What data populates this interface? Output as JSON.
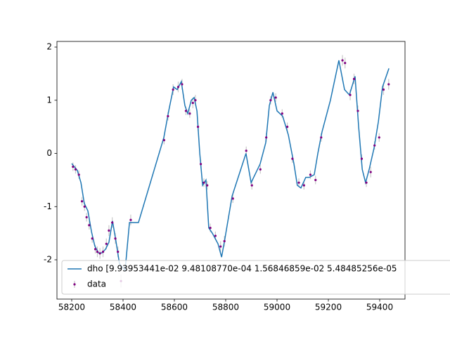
{
  "chart_data": {
    "type": "line",
    "xlim": [
      58142.5,
      59498.6
    ],
    "ylim": [
      -2.739,
      2.106
    ],
    "xticks": [
      58200,
      58400,
      58600,
      58800,
      59000,
      59200,
      59400
    ],
    "yticks": [
      -2,
      -1,
      0,
      1,
      2
    ],
    "legend": "lower left",
    "series": [
      {
        "name": "dho [9.93953441e-02 9.48108770e-04 1.56846859e-02 5.48485256e-05",
        "color": "#1f77b4",
        "style": "line",
        "x": [
          58200,
          58222,
          58236,
          58249,
          58263,
          58277,
          58290,
          58304,
          58318,
          58332,
          58345,
          58359,
          58373,
          58386,
          58408,
          58425,
          58460,
          58559,
          58578,
          58597,
          58611,
          58627,
          58641,
          58652,
          58666,
          58677,
          58688,
          58699,
          58710,
          58723,
          58734,
          58748,
          58770,
          58784,
          58797,
          58825,
          58879,
          58899,
          58934,
          58956,
          58970,
          58984,
          59000,
          59022,
          59044,
          59066,
          59079,
          59093,
          59112,
          59126,
          59145,
          59159,
          59175,
          59208,
          59241,
          59263,
          59282,
          59304,
          59318,
          59332,
          59345,
          59359,
          59378,
          59395,
          59411,
          59436
        ],
        "values": [
          -0.19,
          -0.32,
          -0.55,
          -0.94,
          -1.08,
          -1.47,
          -1.74,
          -1.87,
          -1.87,
          -1.8,
          -1.67,
          -1.27,
          -1.67,
          -2.07,
          -2.2,
          -1.3,
          -1.3,
          0.3,
          0.8,
          1.25,
          1.2,
          1.35,
          0.9,
          0.75,
          1.0,
          1.05,
          0.8,
          0.0,
          -0.6,
          -0.5,
          -1.4,
          -1.5,
          -1.7,
          -1.95,
          -1.6,
          -0.8,
          0.0,
          -0.55,
          -0.2,
          0.2,
          0.9,
          1.15,
          0.8,
          0.7,
          0.35,
          -0.2,
          -0.6,
          -0.65,
          -0.45,
          -0.45,
          -0.4,
          0.0,
          0.4,
          1.0,
          1.75,
          1.2,
          1.1,
          1.45,
          0.5,
          -0.3,
          -0.55,
          -0.3,
          0.1,
          0.6,
          1.25,
          1.6
        ]
      },
      {
        "name": "data",
        "color": "#800080",
        "error_color": "#c8c8c8",
        "style": "points",
        "x": [
          58205,
          58215,
          58228,
          58240,
          58250,
          58258,
          58268,
          58280,
          58292,
          58300,
          58310,
          58322,
          58335,
          58345,
          58358,
          58370,
          58380,
          58392,
          58430,
          58560,
          58575,
          58595,
          58615,
          58630,
          58645,
          58660,
          58672,
          58682,
          58692,
          58703,
          58715,
          58728,
          58740,
          58760,
          58780,
          58795,
          58828,
          58880,
          58902,
          58935,
          58958,
          58975,
          58995,
          59020,
          59040,
          59060,
          59085,
          59105,
          59130,
          59150,
          59172,
          59255,
          59265,
          59285,
          59300,
          59315,
          59330,
          59348,
          59365,
          59380,
          59398,
          59415,
          59435
        ],
        "values": [
          -0.25,
          -0.3,
          -0.4,
          -0.9,
          -1.0,
          -1.2,
          -1.35,
          -1.6,
          -1.8,
          -1.85,
          -1.88,
          -1.85,
          -1.7,
          -1.45,
          -1.3,
          -1.6,
          -1.85,
          -2.4,
          -1.25,
          0.25,
          0.7,
          1.2,
          1.25,
          1.3,
          0.8,
          0.75,
          0.95,
          1.0,
          0.5,
          -0.2,
          -0.55,
          -0.6,
          -1.4,
          -1.55,
          -1.75,
          -1.65,
          -0.85,
          0.05,
          -0.6,
          -0.3,
          0.3,
          1.0,
          1.05,
          0.75,
          0.5,
          -0.1,
          -0.55,
          -0.6,
          -0.4,
          -0.5,
          0.3,
          1.75,
          1.7,
          1.1,
          1.4,
          0.8,
          -0.1,
          -0.55,
          -0.35,
          0.15,
          0.3,
          1.2,
          1.3
        ],
        "errors": [
          0.08,
          0.08,
          0.08,
          0.08,
          0.08,
          0.08,
          0.08,
          0.08,
          0.08,
          0.1,
          0.1,
          0.1,
          0.1,
          0.1,
          0.1,
          0.1,
          0.1,
          0.12,
          0.1,
          0.08,
          0.08,
          0.1,
          0.1,
          0.1,
          0.08,
          0.08,
          0.1,
          0.1,
          0.08,
          0.08,
          0.08,
          0.08,
          0.08,
          0.08,
          0.1,
          0.1,
          0.08,
          0.08,
          0.08,
          0.08,
          0.08,
          0.08,
          0.08,
          0.08,
          0.08,
          0.08,
          0.08,
          0.08,
          0.08,
          0.08,
          0.08,
          0.1,
          0.1,
          0.1,
          0.1,
          0.1,
          0.08,
          0.08,
          0.1,
          0.08,
          0.08,
          0.1,
          0.1
        ]
      }
    ]
  }
}
